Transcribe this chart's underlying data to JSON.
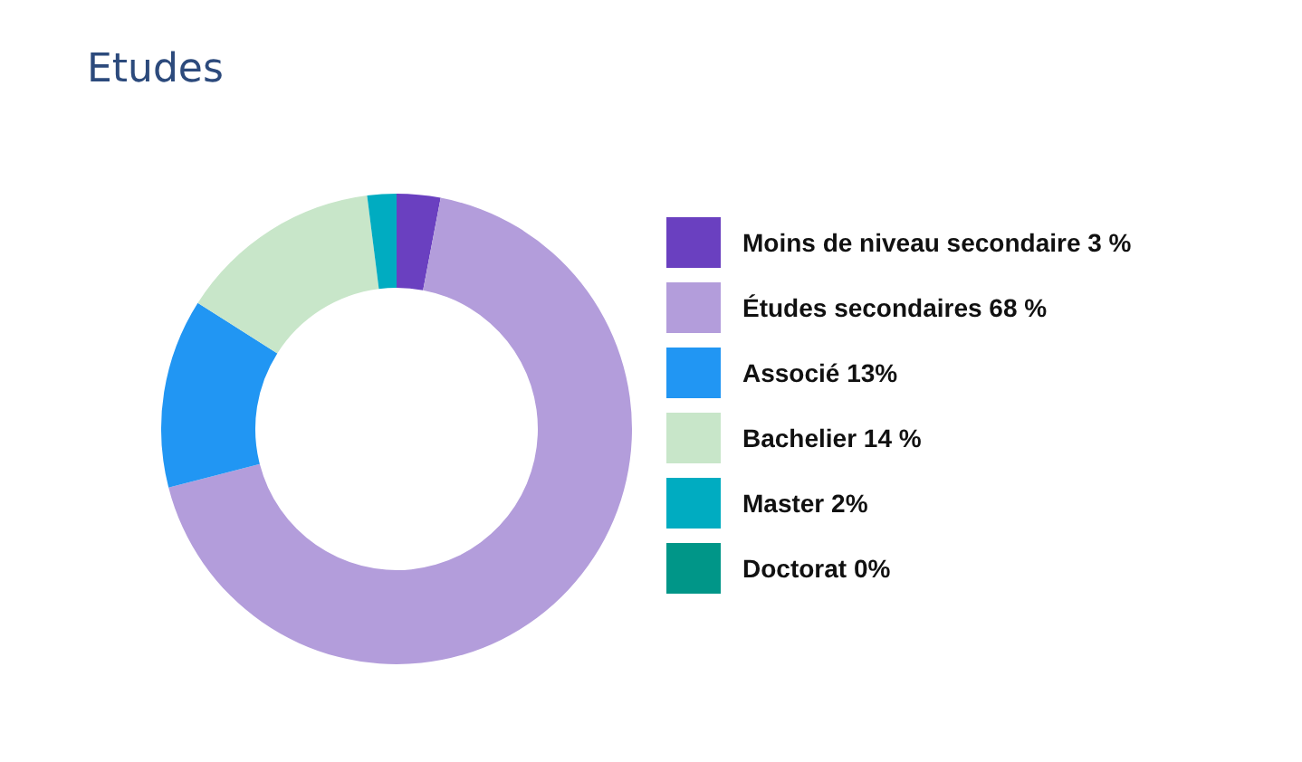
{
  "chart_data": {
    "type": "donut",
    "title": "Etudes",
    "categories": [
      "Moins de niveau secondaire",
      "Études secondaires",
      "Associé",
      "Bachelier",
      "Master",
      "Doctorat"
    ],
    "values": [
      3,
      68,
      13,
      14,
      2,
      0
    ],
    "value_labels": [
      "3 %",
      "68 %",
      "13%",
      "14 %",
      "2%",
      "0%"
    ],
    "colors": [
      "#6a40c0",
      "#b39ddb",
      "#2196f3",
      "#c8e6c9",
      "#00acc1",
      "#009688"
    ],
    "legend": "right"
  }
}
